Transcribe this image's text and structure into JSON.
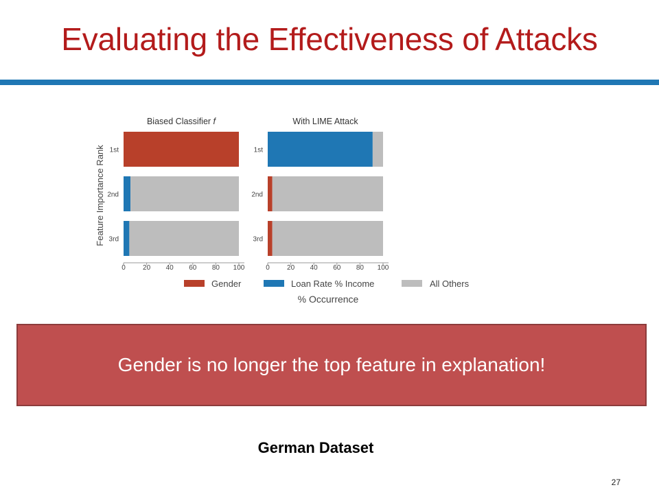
{
  "slide": {
    "title": "Evaluating the Effectiveness of Attacks",
    "callout": "Gender is no longer the top feature in explanation!",
    "caption": "German Dataset",
    "page_number": "27"
  },
  "colors": {
    "title": "#b31b1b",
    "rule": "#1f77b4",
    "callout_bg": "#bf4f4f",
    "gender": "#b8402a",
    "loan": "#1f77b4",
    "others": "#bdbdbd"
  },
  "chart_data": {
    "type": "bar",
    "orientation": "horizontal",
    "stacked": true,
    "ylabel": "Feature Importance Rank",
    "xlabel": "% Occurrence",
    "categories": [
      "1st",
      "2nd",
      "3rd"
    ],
    "xlim": [
      0,
      100
    ],
    "xticks": [
      0,
      20,
      40,
      60,
      80,
      100
    ],
    "legend": {
      "placement": "bottom",
      "entries": [
        "Gender",
        "Loan Rate % Income",
        "All Others"
      ]
    },
    "panels": [
      {
        "title": "Biased Classifier",
        "title_italic": "f",
        "series": [
          {
            "name": "Gender",
            "values": [
              100,
              0,
              0
            ]
          },
          {
            "name": "Loan Rate % Income",
            "values": [
              0,
              6,
              5
            ]
          },
          {
            "name": "All Others",
            "values": [
              0,
              94,
              95
            ]
          }
        ]
      },
      {
        "title": "With LIME Attack",
        "title_italic": "",
        "series": [
          {
            "name": "Gender",
            "values": [
              0,
              4,
              4
            ]
          },
          {
            "name": "Loan Rate % Income",
            "values": [
              91,
              0,
              0
            ]
          },
          {
            "name": "All Others",
            "values": [
              9,
              96,
              96
            ]
          }
        ]
      }
    ]
  }
}
